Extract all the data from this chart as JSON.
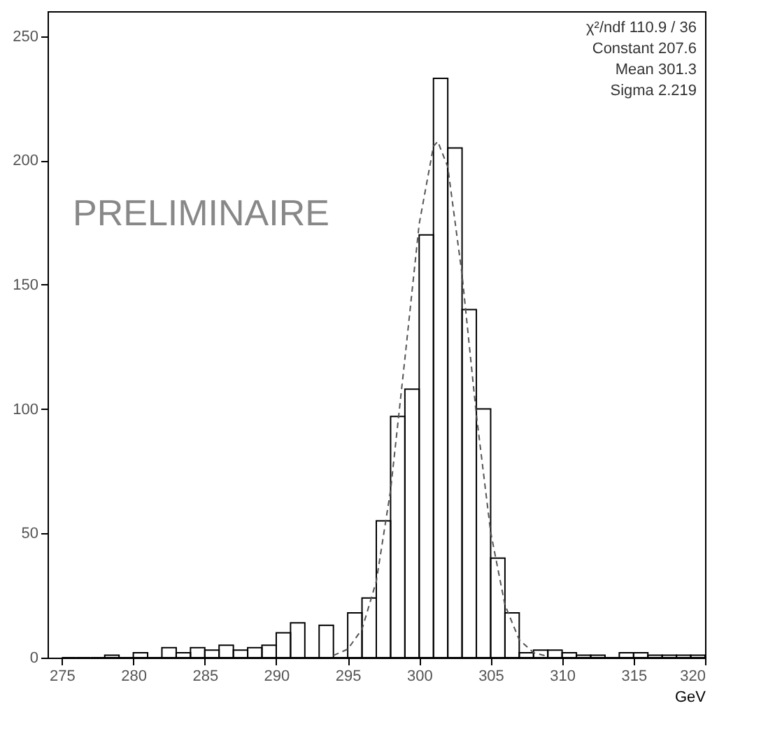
{
  "chart_data": {
    "type": "histogram",
    "xlabel": "GeV",
    "bins": [
      275,
      276,
      277,
      278,
      279,
      280,
      281,
      282,
      283,
      284,
      285,
      286,
      287,
      288,
      289,
      290,
      291,
      292,
      293,
      294,
      295,
      296,
      297,
      298,
      299,
      300,
      301,
      302,
      303,
      304,
      305,
      306,
      307,
      308,
      309,
      310,
      311,
      312,
      313,
      314,
      315,
      316,
      317,
      318,
      319,
      320
    ],
    "values": [
      0,
      0,
      0,
      1,
      0,
      2,
      0,
      4,
      2,
      4,
      3,
      5,
      3,
      4,
      5,
      10,
      14,
      0,
      13,
      0,
      18,
      24,
      55,
      97,
      108,
      170,
      233,
      205,
      140,
      100,
      40,
      18,
      2,
      3,
      3,
      2,
      1,
      1,
      0,
      2,
      2,
      1,
      1,
      1,
      1
    ],
    "color": "#000000",
    "series": [
      {
        "type": "line",
        "color": "#555555",
        "line_style": "dashed",
        "x": [
          294,
          295,
          296,
          297,
          298,
          299,
          300,
          301,
          301.3,
          302,
          303,
          304,
          305,
          306,
          307,
          308,
          309
        ],
        "values": [
          0.9,
          3.4,
          11.4,
          30.7,
          67.4,
          120.2,
          174.4,
          205.7,
          207.6,
          197.4,
          154.0,
          97.8,
          50.5,
          21.2,
          7.2,
          2.0,
          0.5
        ]
      }
    ],
    "xlim": [
      274,
      320
    ],
    "xticks": [
      275,
      280,
      285,
      290,
      295,
      300,
      305,
      310,
      315,
      320
    ],
    "ylim": [
      0,
      260
    ],
    "yticks": [
      0,
      50,
      100,
      150,
      200,
      250
    ],
    "grid": false,
    "annotations": [
      "χ²/ndf 110.9 / 36",
      "Constant 207.6",
      "Mean 301.3",
      "Sigma 2.219",
      "PRELIMINAIRE"
    ]
  }
}
